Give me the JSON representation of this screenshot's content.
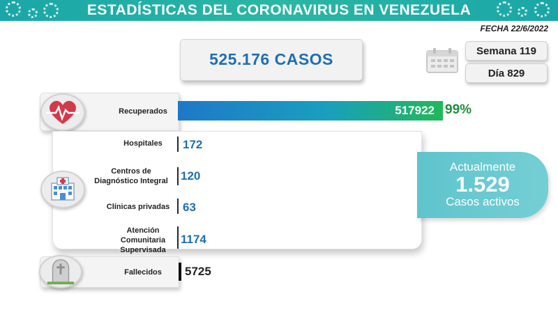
{
  "header": {
    "title": "ESTADÍSTICAS DEL CORONAVIRUS EN VENEZUELA",
    "date": "FECHA 22/6/2022"
  },
  "cases": {
    "label": "525.176 CASOS"
  },
  "calendar": {
    "week": "Semana 119",
    "day": "Día 829"
  },
  "active": {
    "line1": "Actualmente",
    "value": "1.529",
    "line3": "Casos activos"
  },
  "colors": {
    "header": "#1aa6a8",
    "blue": "#1e6fb4",
    "green": "#1f8f3a",
    "active": "#6ccad1"
  },
  "icons": {
    "recovered": "heart-pulse-icon",
    "hospital": "hospital-icon",
    "deaths": "tombstone-icon",
    "calendar": "calendar-icon"
  },
  "chart_data": {
    "type": "bar",
    "title": "",
    "categories": [
      "Recuperados",
      "Hospitales",
      "Centros de Diagnóstico Integral",
      "Clínicas privadas",
      "Atención Comunitaria Supervisada",
      "Fallecidos"
    ],
    "values": [
      517922,
      172,
      120,
      63,
      1174,
      5725
    ],
    "value_labels": [
      "517922",
      "172",
      "120",
      "63",
      "1174",
      "5725"
    ],
    "recovered_pct_label": "99%",
    "total_cases": 525176,
    "active_cases": 1529,
    "label_lines": {
      "recuperados": [
        "Recuperados"
      ],
      "hospitales": [
        "Hospitales"
      ],
      "cdi": [
        "Centros de",
        "Diagnóstico Integral"
      ],
      "clinicas": [
        "Clínicas privadas"
      ],
      "acs": [
        "Atención",
        "Comunitaria",
        "Supervisada"
      ],
      "fallecidos": [
        "Fallecidos"
      ]
    }
  }
}
